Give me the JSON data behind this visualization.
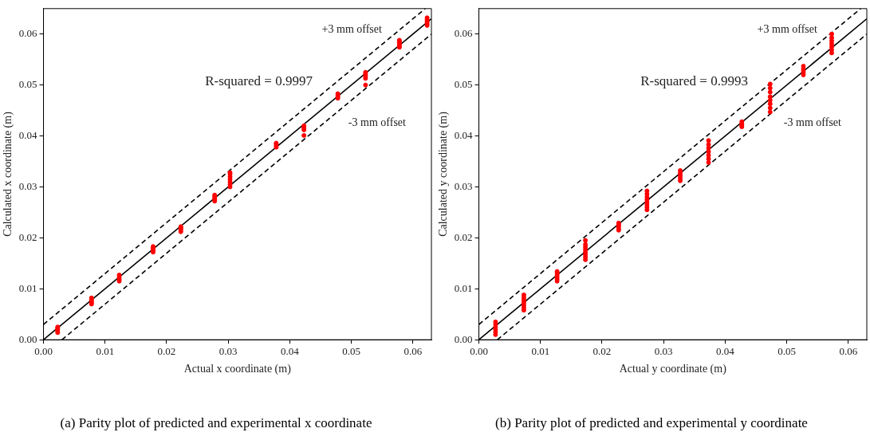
{
  "chart_data": [
    {
      "type": "scatter",
      "title": "(a) Parity plot of predicted and experimental x coordinate",
      "xlabel": "Actual x coordinate (m)",
      "ylabel": "Calculated x coordinate (m)",
      "xlim": [
        0,
        0.063
      ],
      "ylim": [
        0,
        0.065
      ],
      "xticks": [
        {
          "value": 0,
          "label": "0.00"
        },
        {
          "value": 0.01,
          "label": "0.01"
        },
        {
          "value": 0.02,
          "label": "0.02"
        },
        {
          "value": 0.03,
          "label": "0.03"
        },
        {
          "value": 0.04,
          "label": "0.04"
        },
        {
          "value": 0.05,
          "label": "0.05"
        },
        {
          "value": 0.06,
          "label": "0.06"
        }
      ],
      "yticks": [
        {
          "value": 0,
          "label": "0.00"
        },
        {
          "value": 0.01,
          "label": "0.01"
        },
        {
          "value": 0.02,
          "label": "0.02"
        },
        {
          "value": 0.03,
          "label": "0.03"
        },
        {
          "value": 0.04,
          "label": "0.04"
        },
        {
          "value": 0.05,
          "label": "0.05"
        },
        {
          "value": 0.06,
          "label": "0.06"
        }
      ],
      "grid": false,
      "annotations": [
        "R-squared = 0.9997",
        "+3 mm offset",
        "-3 mm offset"
      ],
      "series": [
        {
          "color": "#ff0000",
          "marker": "circle",
          "x": [
            0.0023,
            0.0023,
            0.0023,
            0.0023,
            0.0023,
            0.0078,
            0.0078,
            0.0078,
            0.0078,
            0.0078,
            0.0123,
            0.0123,
            0.0123,
            0.0123,
            0.0123,
            0.0178,
            0.0178,
            0.0178,
            0.0178,
            0.0178,
            0.0223,
            0.0223,
            0.0223,
            0.0223,
            0.0223,
            0.0278,
            0.0278,
            0.0278,
            0.0278,
            0.0278,
            0.0303,
            0.0303,
            0.0303,
            0.0303,
            0.0303,
            0.0303,
            0.0303,
            0.0378,
            0.0378,
            0.0378,
            0.0378,
            0.0423,
            0.0423,
            0.0423,
            0.0423,
            0.0423,
            0.0478,
            0.0478,
            0.0478,
            0.0478,
            0.0523,
            0.0523,
            0.0523,
            0.0523,
            0.0523,
            0.0523,
            0.0578,
            0.0578,
            0.0578,
            0.0578,
            0.0578,
            0.0578,
            0.0623,
            0.0623,
            0.0623,
            0.0623,
            0.0623,
            0.0623
          ],
          "values": [
            0.0014,
            0.0017,
            0.002,
            0.0023,
            0.0025,
            0.007,
            0.0073,
            0.0076,
            0.0079,
            0.0082,
            0.0115,
            0.0118,
            0.0121,
            0.0124,
            0.0127,
            0.0172,
            0.0175,
            0.0178,
            0.0181,
            0.0183,
            0.0212,
            0.0215,
            0.0218,
            0.022,
            0.0222,
            0.0272,
            0.0275,
            0.0278,
            0.0281,
            0.0284,
            0.03,
            0.0305,
            0.031,
            0.0315,
            0.032,
            0.0325,
            0.0328,
            0.0378,
            0.0381,
            0.0384,
            0.0386,
            0.0401,
            0.0412,
            0.0415,
            0.0418,
            0.042,
            0.0474,
            0.0477,
            0.048,
            0.0483,
            0.05,
            0.0513,
            0.0516,
            0.0519,
            0.0522,
            0.0525,
            0.0574,
            0.0577,
            0.058,
            0.0583,
            0.0586,
            0.0588,
            0.0617,
            0.062,
            0.0623,
            0.0626,
            0.0629,
            0.0632
          ]
        },
        {
          "type": "line",
          "color": "#000000",
          "line_style": "solid",
          "x": [
            0,
            0.063
          ],
          "values": [
            0,
            0.063
          ]
        },
        {
          "type": "line",
          "color": "#000000",
          "line_style": "dashed",
          "x": [
            0,
            0.062
          ],
          "values": [
            0.003,
            0.065
          ]
        },
        {
          "type": "line",
          "color": "#000000",
          "line_style": "dashed",
          "x": [
            0.003,
            0.063
          ],
          "values": [
            0,
            0.06
          ]
        }
      ]
    },
    {
      "type": "scatter",
      "title": "(b) Parity plot of predicted and experimental y coordinate",
      "xlabel": "Actual y coordinate (m)",
      "ylabel": "Calculated y coordinate (m)",
      "xlim": [
        0,
        0.063
      ],
      "ylim": [
        0,
        0.065
      ],
      "xticks": [
        {
          "value": 0,
          "label": "0.00"
        },
        {
          "value": 0.01,
          "label": "0.01"
        },
        {
          "value": 0.02,
          "label": "0.02"
        },
        {
          "value": 0.03,
          "label": "0.03"
        },
        {
          "value": 0.04,
          "label": "0.04"
        },
        {
          "value": 0.05,
          "label": "0.05"
        },
        {
          "value": 0.06,
          "label": "0.06"
        }
      ],
      "yticks": [
        {
          "value": 0,
          "label": "0.00"
        },
        {
          "value": 0.01,
          "label": "0.01"
        },
        {
          "value": 0.02,
          "label": "0.02"
        },
        {
          "value": 0.03,
          "label": "0.03"
        },
        {
          "value": 0.04,
          "label": "0.04"
        },
        {
          "value": 0.05,
          "label": "0.05"
        },
        {
          "value": 0.06,
          "label": "0.06"
        }
      ],
      "grid": false,
      "annotations": [
        "R-squared = 0.9993",
        "+3 mm offset",
        "-3 mm offset"
      ],
      "series": [
        {
          "color": "#ff0000",
          "marker": "circle",
          "x": [
            0.0027,
            0.0027,
            0.0027,
            0.0027,
            0.0027,
            0.0027,
            0.0073,
            0.0073,
            0.0073,
            0.0073,
            0.0073,
            0.0073,
            0.0073,
            0.0127,
            0.0127,
            0.0127,
            0.0127,
            0.0127,
            0.0127,
            0.0173,
            0.0173,
            0.0173,
            0.0173,
            0.0173,
            0.0173,
            0.0173,
            0.0173,
            0.0227,
            0.0227,
            0.0227,
            0.0227,
            0.0227,
            0.0273,
            0.0273,
            0.0273,
            0.0273,
            0.0273,
            0.0273,
            0.0273,
            0.0273,
            0.0327,
            0.0327,
            0.0327,
            0.0327,
            0.0327,
            0.0373,
            0.0373,
            0.0373,
            0.0373,
            0.0373,
            0.0373,
            0.0373,
            0.0427,
            0.0427,
            0.0427,
            0.0427,
            0.0473,
            0.0473,
            0.0473,
            0.0473,
            0.0473,
            0.0473,
            0.0473,
            0.0473,
            0.0527,
            0.0527,
            0.0527,
            0.0527,
            0.0527,
            0.0573,
            0.0573,
            0.0573,
            0.0573,
            0.0573,
            0.0573,
            0.0573
          ],
          "values": [
            0.001,
            0.0015,
            0.002,
            0.0025,
            0.003,
            0.0035,
            0.0058,
            0.0063,
            0.0068,
            0.0073,
            0.0078,
            0.0083,
            0.0088,
            0.0115,
            0.0119,
            0.0123,
            0.0127,
            0.0131,
            0.0134,
            0.0157,
            0.0162,
            0.0167,
            0.0172,
            0.0177,
            0.0182,
            0.0187,
            0.0195,
            0.0215,
            0.0219,
            0.0223,
            0.0226,
            0.0229,
            0.0255,
            0.026,
            0.0265,
            0.027,
            0.0275,
            0.028,
            0.0286,
            0.0292,
            0.0312,
            0.0317,
            0.0322,
            0.0327,
            0.0332,
            0.0348,
            0.0355,
            0.0362,
            0.0369,
            0.0376,
            0.0383,
            0.0391,
            0.0418,
            0.0421,
            0.0424,
            0.0428,
            0.0447,
            0.0455,
            0.0463,
            0.047,
            0.0477,
            0.0486,
            0.0494,
            0.0502,
            0.052,
            0.0524,
            0.0528,
            0.0532,
            0.0537,
            0.0563,
            0.0569,
            0.0575,
            0.0581,
            0.0587,
            0.0593,
            0.06
          ]
        },
        {
          "type": "line",
          "color": "#000000",
          "line_style": "solid",
          "x": [
            0,
            0.063
          ],
          "values": [
            0,
            0.063
          ]
        },
        {
          "type": "line",
          "color": "#000000",
          "line_style": "dashed",
          "x": [
            0,
            0.062
          ],
          "values": [
            0.003,
            0.065
          ]
        },
        {
          "type": "line",
          "color": "#000000",
          "line_style": "dashed",
          "x": [
            0.003,
            0.063
          ],
          "values": [
            0,
            0.06
          ]
        }
      ]
    }
  ]
}
